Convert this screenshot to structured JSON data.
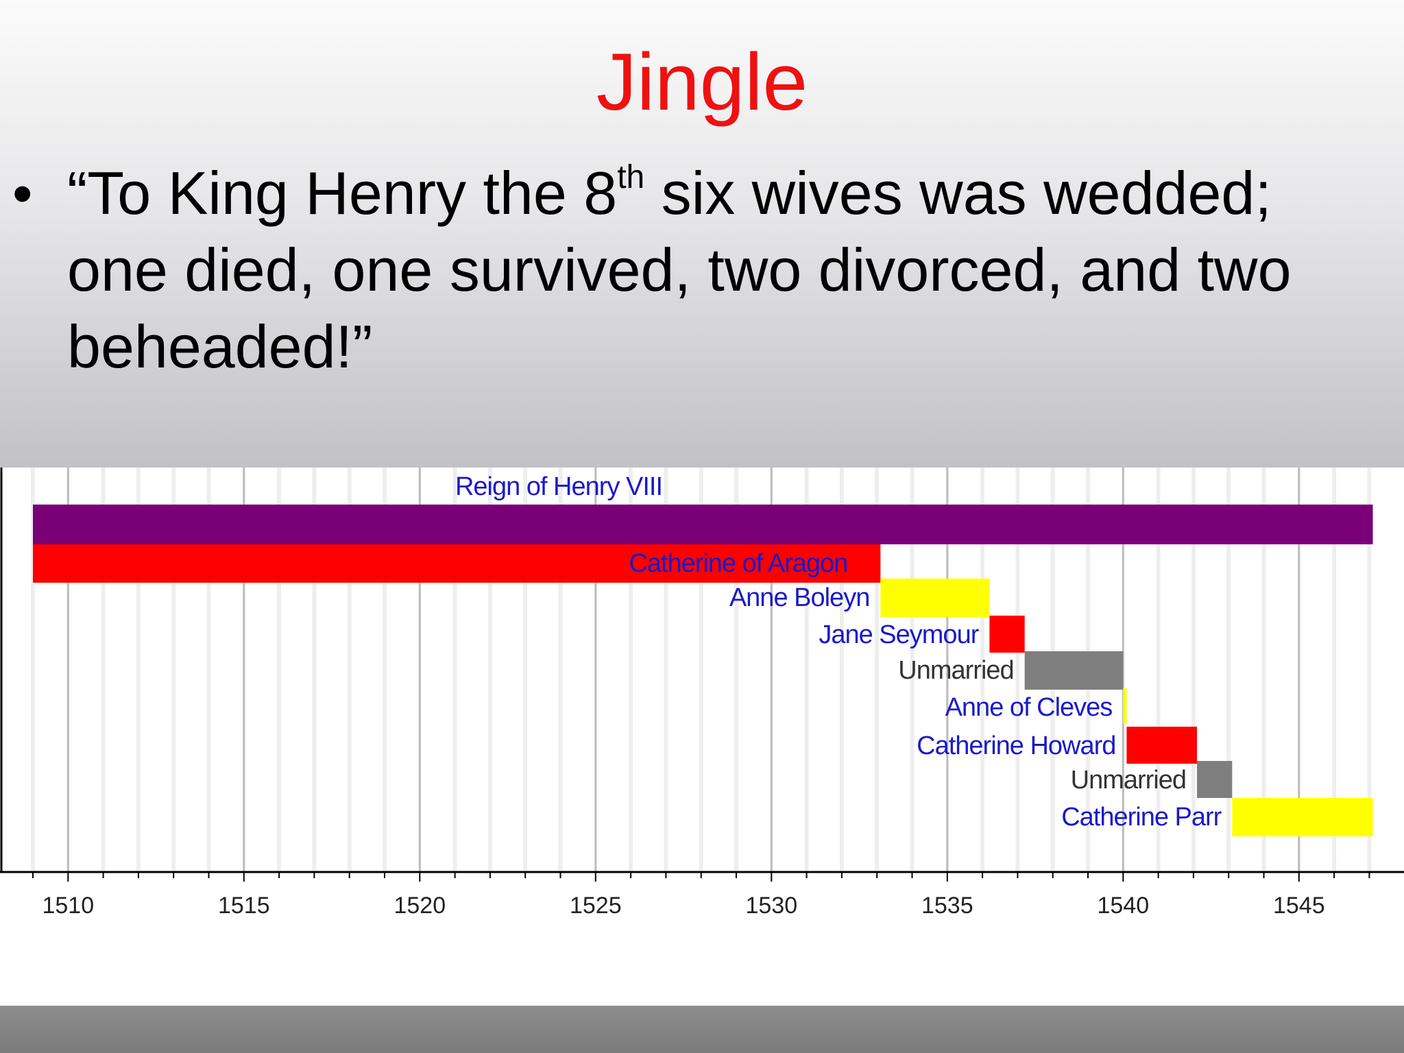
{
  "slide": {
    "title": "Jingle",
    "bullet_symbol": "•",
    "bullet_before": "“To King Henry the 8",
    "bullet_sup": "th",
    "bullet_after": " six wives was wedded; one died, one survived, two divorced, and two beheaded!”"
  },
  "colors": {
    "title": "#ee1111",
    "reign": "#7a0077",
    "red": "#ff0000",
    "yellow": "#ffff00",
    "gray": "#7f7f7f",
    "label_blue": "#1a1ac8",
    "label_gray": "#333333"
  },
  "chart_data": {
    "type": "bar",
    "orientation": "horizontal-timeline",
    "title": "",
    "xlabel": "",
    "ylabel": "",
    "xlim": [
      1509,
      1547.2
    ],
    "xticks": [
      1510,
      1515,
      1520,
      1525,
      1530,
      1535,
      1540,
      1545
    ],
    "grid": true,
    "bars": [
      {
        "label": "Reign of Henry VIII",
        "start": 1509,
        "end": 1547.1,
        "color": "#7a0077",
        "label_color": "#1a1ac8",
        "label_position": "above"
      },
      {
        "label": "Catherine of Aragon",
        "start": 1509,
        "end": 1533.1,
        "color": "#ff0000",
        "label_color": "#1a1ac8",
        "label_position": "inside-right"
      },
      {
        "label": "Anne Boleyn",
        "start": 1533.1,
        "end": 1536.2,
        "color": "#ffff00",
        "label_color": "#1a1ac8",
        "label_position": "left"
      },
      {
        "label": "Jane Seymour",
        "start": 1536.2,
        "end": 1537.2,
        "color": "#ff0000",
        "label_color": "#1a1ac8",
        "label_position": "left"
      },
      {
        "label": "Unmarried",
        "start": 1537.2,
        "end": 1540.0,
        "color": "#7f7f7f",
        "label_color": "#333333",
        "label_position": "left"
      },
      {
        "label": "Anne of Cleves",
        "start": 1540.0,
        "end": 1540.1,
        "color": "#ffff00",
        "label_color": "#1a1ac8",
        "label_position": "left"
      },
      {
        "label": "Catherine Howard",
        "start": 1540.1,
        "end": 1542.1,
        "color": "#ff0000",
        "label_color": "#1a1ac8",
        "label_position": "left"
      },
      {
        "label": "Unmarried",
        "start": 1542.1,
        "end": 1543.1,
        "color": "#7f7f7f",
        "label_color": "#333333",
        "label_position": "left"
      },
      {
        "label": "Catherine Parr",
        "start": 1543.1,
        "end": 1547.1,
        "color": "#ffff00",
        "label_color": "#1a1ac8",
        "label_position": "left"
      }
    ]
  }
}
